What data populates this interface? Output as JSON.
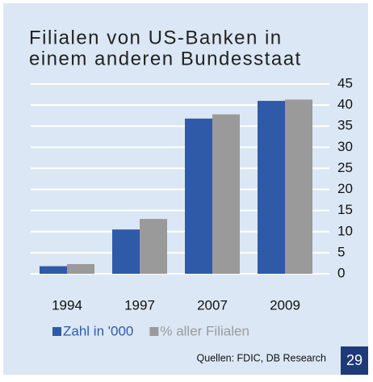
{
  "chart_data": {
    "type": "bar",
    "title_lines": [
      "Filialen von US-Banken in",
      "einem anderen Bundesstaat"
    ],
    "categories": [
      "1994",
      "1997",
      "2007",
      "2009"
    ],
    "series": [
      {
        "name": "Zahl in '000",
        "color": "#2f5aa8",
        "values": [
          1.8,
          10.5,
          36.8,
          41
        ]
      },
      {
        "name": "% aller Filialen",
        "color": "#9a9a9a",
        "values": [
          2.3,
          13,
          37.8,
          41.3
        ]
      }
    ],
    "ylim": [
      0,
      45
    ],
    "yticks": [
      0,
      5,
      10,
      15,
      20,
      25,
      30,
      35,
      40,
      45
    ],
    "grid": true,
    "source": "Quellen: FDIC, DB Research",
    "page_number": "29"
  }
}
